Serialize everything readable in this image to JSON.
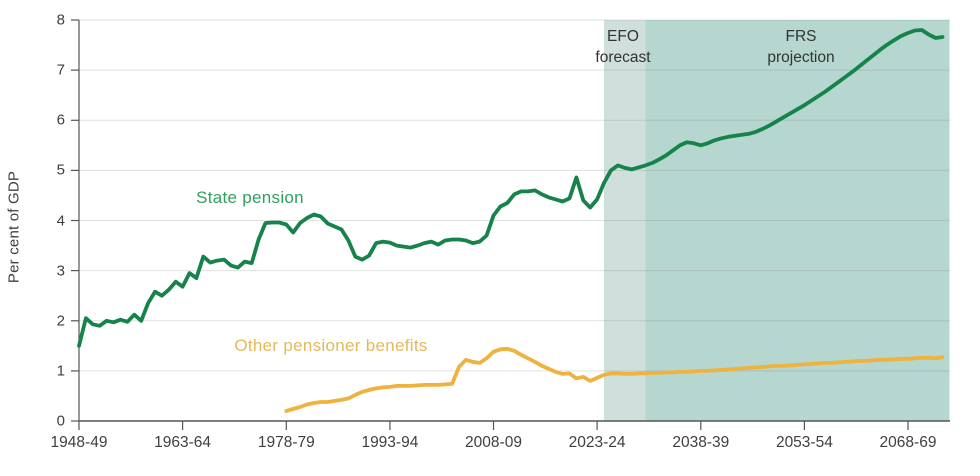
{
  "chart_data": {
    "type": "line",
    "title": "",
    "ylabel": "Per cent of GDP",
    "ylim": [
      0,
      8
    ],
    "y_ticks": [
      0,
      1,
      2,
      3,
      4,
      5,
      6,
      7,
      8
    ],
    "x_tick_years": [
      1948,
      1963,
      1978,
      1993,
      2008,
      2023,
      2038,
      2053,
      2068
    ],
    "x_tick_labels": [
      "1948-49",
      "1963-64",
      "1978-79",
      "1993-94",
      "2008-09",
      "2023-24",
      "2038-39",
      "2053-54",
      "2068-69"
    ],
    "x_range_years": [
      1948,
      2074
    ],
    "grid": "horizontal",
    "legend_position": "inline-labels",
    "bands": [
      {
        "name": "EFO forecast",
        "label_line1": "EFO",
        "label_line2": "forecast",
        "from_year": 2024,
        "to_year": 2030,
        "color": "#cfe0dc"
      },
      {
        "name": "FRS projection",
        "label_line1": "FRS",
        "label_line2": "projection",
        "from_year": 2030,
        "to_year": 2074,
        "color": "#b6d6d0"
      }
    ],
    "series": [
      {
        "name": "State pension",
        "color": "#15834a",
        "label_color": "#2fa05e",
        "start_year": 1948,
        "values": [
          1.5,
          2.05,
          1.93,
          1.9,
          2.0,
          1.97,
          2.02,
          1.98,
          2.12,
          2.0,
          2.35,
          2.58,
          2.5,
          2.62,
          2.78,
          2.68,
          2.95,
          2.85,
          3.28,
          3.16,
          3.2,
          3.22,
          3.1,
          3.06,
          3.18,
          3.15,
          3.62,
          3.95,
          3.96,
          3.96,
          3.92,
          3.76,
          3.95,
          4.05,
          4.12,
          4.08,
          3.94,
          3.88,
          3.82,
          3.6,
          3.28,
          3.22,
          3.3,
          3.55,
          3.58,
          3.56,
          3.5,
          3.48,
          3.46,
          3.5,
          3.55,
          3.58,
          3.52,
          3.6,
          3.62,
          3.62,
          3.6,
          3.55,
          3.58,
          3.7,
          4.1,
          4.28,
          4.35,
          4.52,
          4.58,
          4.58,
          4.6,
          4.52,
          4.46,
          4.42,
          4.38,
          4.44,
          4.86,
          4.4,
          4.26,
          4.42,
          4.75,
          5.0,
          5.1,
          5.05,
          5.02,
          5.06,
          5.1,
          5.15,
          5.22,
          5.3,
          5.4,
          5.5,
          5.56,
          5.54,
          5.5,
          5.54,
          5.6,
          5.64,
          5.67,
          5.69,
          5.71,
          5.73,
          5.77,
          5.83,
          5.9,
          5.98,
          6.06,
          6.14,
          6.22,
          6.3,
          6.39,
          6.48,
          6.57,
          6.67,
          6.77,
          6.87,
          6.97,
          7.08,
          7.19,
          7.3,
          7.41,
          7.51,
          7.6,
          7.68,
          7.74,
          7.79,
          7.8,
          7.71,
          7.64,
          7.66
        ]
      },
      {
        "name": "Other pensioner benefits",
        "color": "#f0b23e",
        "label_color": "#e4b95c",
        "start_year": 1978,
        "values": [
          0.2,
          0.24,
          0.28,
          0.33,
          0.36,
          0.38,
          0.38,
          0.4,
          0.42,
          0.45,
          0.52,
          0.58,
          0.62,
          0.65,
          0.67,
          0.68,
          0.7,
          0.7,
          0.7,
          0.71,
          0.72,
          0.72,
          0.72,
          0.73,
          0.74,
          1.08,
          1.22,
          1.18,
          1.16,
          1.25,
          1.38,
          1.43,
          1.44,
          1.4,
          1.32,
          1.25,
          1.18,
          1.1,
          1.04,
          0.98,
          0.94,
          0.95,
          0.85,
          0.88,
          0.8,
          0.86,
          0.92,
          0.95,
          0.95,
          0.94,
          0.94,
          0.95,
          0.95,
          0.96,
          0.96,
          0.97,
          0.97,
          0.98,
          0.98,
          0.99,
          1.0,
          1.0,
          1.01,
          1.02,
          1.03,
          1.04,
          1.05,
          1.06,
          1.07,
          1.08,
          1.09,
          1.1,
          1.1,
          1.11,
          1.12,
          1.13,
          1.14,
          1.15,
          1.16,
          1.16,
          1.17,
          1.18,
          1.19,
          1.2,
          1.2,
          1.21,
          1.22,
          1.22,
          1.23,
          1.24,
          1.24,
          1.25,
          1.26,
          1.26,
          1.25,
          1.27
        ]
      }
    ],
    "axis_color": "#555555",
    "gridline_color": "rgba(120,120,120,0.22)",
    "text_color": "#3f3f3f"
  }
}
